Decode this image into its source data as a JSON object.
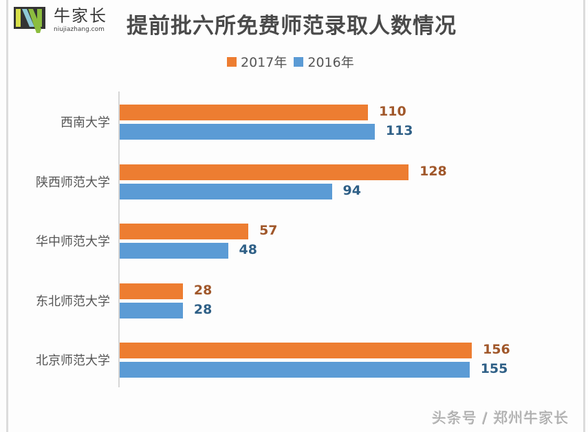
{
  "brand": {
    "name_cn": "牛家长",
    "domain": "niujiazhang.com"
  },
  "footer": {
    "watermark": "头条号 / 郑州牛家长"
  },
  "colors": {
    "series_2017": "#ed7d31",
    "series_2016": "#5b9bd5",
    "label_2017": "#a0572a",
    "label_2016": "#2e5f86"
  },
  "chart_data": {
    "type": "bar",
    "orientation": "horizontal",
    "title": "提前批六所免费师范录取人数情况",
    "xlabel": "",
    "ylabel": "",
    "grid": false,
    "legend_position": "top",
    "categories": [
      "西南大学",
      "陕西师范大学",
      "华中师范大学",
      "东北师范大学",
      "北京师范大学"
    ],
    "series": [
      {
        "name": "2017年",
        "values": [
          110,
          128,
          57,
          28,
          156
        ]
      },
      {
        "name": "2016年",
        "values": [
          113,
          94,
          48,
          28,
          155
        ]
      }
    ]
  }
}
